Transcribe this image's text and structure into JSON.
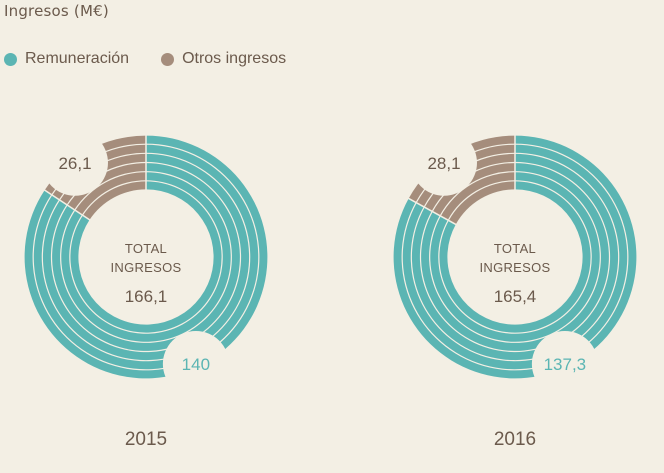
{
  "title": "Ingresos (M€)",
  "colors": {
    "remuneracion": "#5bb5b3",
    "otros": "#a58d7c",
    "background": "#f3efe4",
    "text": "#6b5a4c"
  },
  "chart_data": {
    "type": "pie",
    "title": "Ingresos (M€)",
    "legend": {
      "placement": "top-left",
      "entries": [
        "Remuneración",
        "Otros ingresos"
      ]
    },
    "series_names": [
      "Remuneración",
      "Otros ingresos"
    ],
    "center_label_line1": "TOTAL",
    "center_label_line2": "INGRESOS",
    "charts": [
      {
        "year": "2015",
        "total": 166.1,
        "total_label": "166,1",
        "slices": [
          {
            "name": "Remuneración",
            "value": 140,
            "label": "140"
          },
          {
            "name": "Otros ingresos",
            "value": 26.1,
            "label": "26,1"
          }
        ]
      },
      {
        "year": "2016",
        "total": 165.4,
        "total_label": "165,4",
        "slices": [
          {
            "name": "Remuneración",
            "value": 137.3,
            "label": "137,3"
          },
          {
            "name": "Otros ingresos",
            "value": 28.1,
            "label": "28,1"
          }
        ]
      }
    ]
  }
}
